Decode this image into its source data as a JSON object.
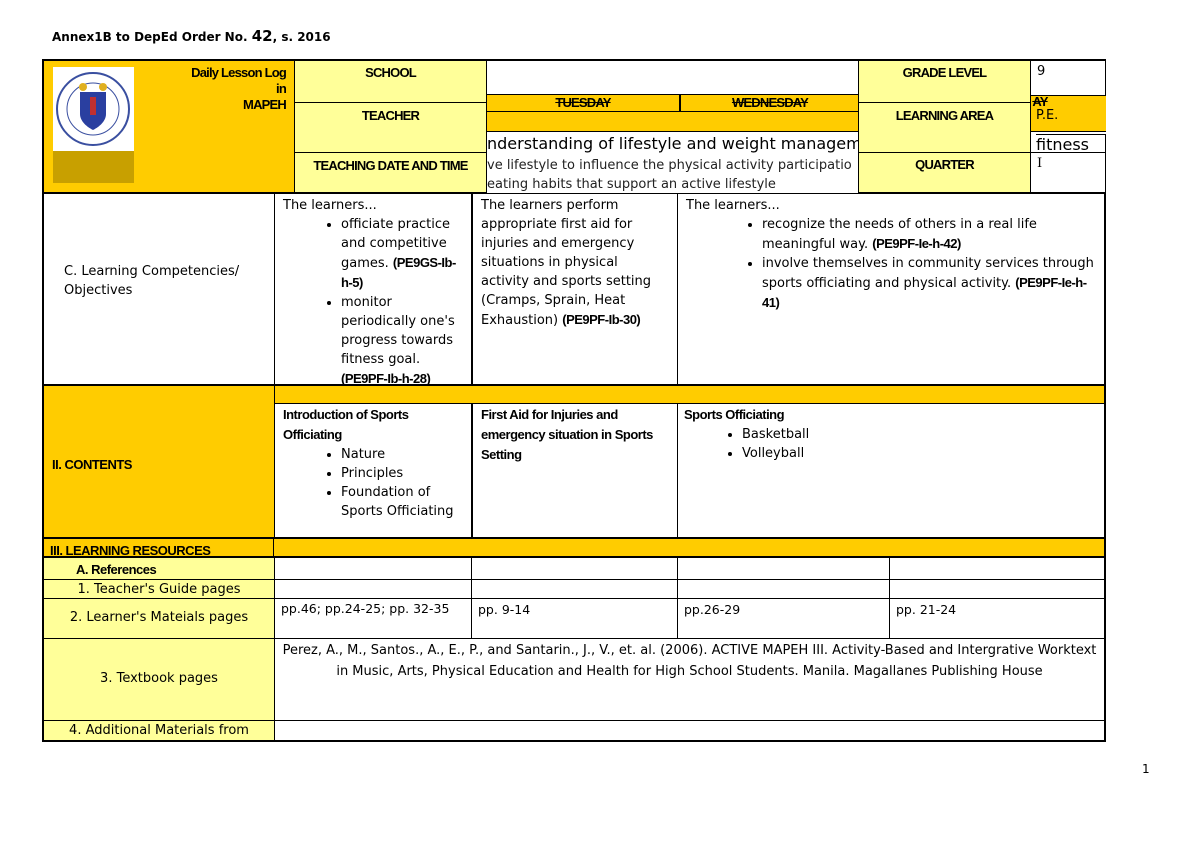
{
  "annex": {
    "prefix": "Annex1B to DepEd Order No. ",
    "number": "42",
    "suffix": ", s. 2016"
  },
  "header": {
    "title_lines": [
      "Daily Lesson Log",
      "in",
      "MAPEH"
    ],
    "school_label": "SCHOOL",
    "school_value": "",
    "teacher_label": "TEACHER",
    "date_label": "TEACHING DATE AND TIME",
    "grade_label": "GRADE LEVEL",
    "grade_value": "9",
    "area_label": "LEARNING AREA",
    "area_value": "P.E.",
    "quarter_label": "QUARTER",
    "quarter_value": "I",
    "days": [
      "TUESDAY",
      "WEDNESDAY",
      "AY"
    ],
    "overflow_standard": "nderstanding of lifestyle and weight management",
    "overflow_fitness": "fitness",
    "overflow_line1": "ve lifestyle to influence the physical activity participatio",
    "overflow_line2": "eating habits that support an active lifestyle"
  },
  "objectives": {
    "label": "C. Learning Competencies/ Objectives",
    "col1": {
      "intro": "The learners...",
      "items": [
        {
          "text": "officiate practice and competitive games. ",
          "code": "(PE9GS-Ib-h-5)"
        },
        {
          "text": "monitor periodically one's progress towards fitness goal. ",
          "code": "(PE9PF-Ib-h-28)"
        }
      ]
    },
    "col2": {
      "text": "The learners perform appropriate first aid for injuries and emergency situations in physical activity and sports setting (Cramps, Sprain, Heat Exhaustion) ",
      "code": "(PE9PF-Ib-30)"
    },
    "col3": {
      "intro": "The learners...",
      "items": [
        {
          "text": "recognize the needs of others in a real life meaningful way. ",
          "code": "(PE9PF-Ie-h-42)"
        },
        {
          "text": "involve themselves in community services through sports officiating and physical activity. ",
          "code": "(PE9PF-Ie-h-41)"
        }
      ]
    }
  },
  "contents": {
    "label": "II. CONTENTS",
    "col1": {
      "title": "Introduction of Sports Officiating",
      "items": [
        "Nature",
        "Principles",
        "Foundation of Sports Officiating"
      ]
    },
    "col2": {
      "title": "First Aid for Injuries and emergency situation in Sports Setting"
    },
    "col3": {
      "title": "Sports Officiating",
      "items": [
        "Basketball",
        "Volleyball"
      ]
    }
  },
  "resources": {
    "label": "III. LEARNING RESOURCES",
    "references": "A. References",
    "tg": "1. Teacher's Guide pages",
    "lm": "2. Learner's Mateials pages",
    "lm_values": [
      "pp.46; pp.24-25; pp. 32-35",
      "pp. 9-14",
      "pp.26-29",
      "pp. 21-24"
    ],
    "textbook": "3. Textbook pages",
    "textbook_value": "Perez, A., M., Santos., A., E., P., and Santarin., J., V., et. al. (2006). ACTIVE MAPEH III. Activity-Based and Intergrative Worktext in Music, Arts, Physical Education and Health for High School Students. Manila. Magallanes Publishing House",
    "additional": "4. Additional Materials from"
  },
  "page_number": "1",
  "logo_text": "KAGAWARAN NG EDUKASYON"
}
